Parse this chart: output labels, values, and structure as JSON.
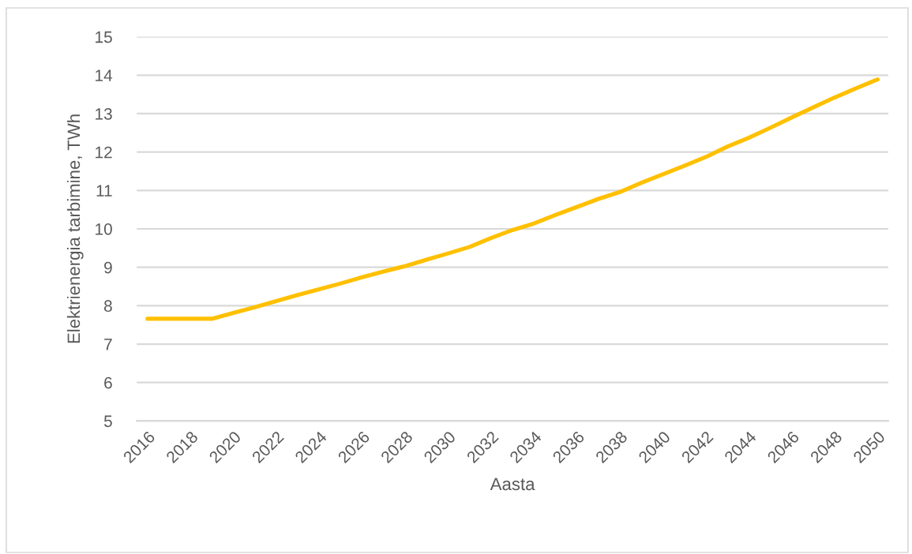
{
  "chart_data": {
    "type": "line",
    "xlabel": "Aasta",
    "ylabel": "Elektrienergia tarbimine, TWh",
    "x": [
      2016,
      2017,
      2018,
      2019,
      2020,
      2021,
      2022,
      2023,
      2024,
      2025,
      2026,
      2027,
      2028,
      2029,
      2030,
      2031,
      2032,
      2033,
      2034,
      2035,
      2036,
      2037,
      2038,
      2039,
      2040,
      2041,
      2042,
      2043,
      2044,
      2045,
      2046,
      2047,
      2048,
      2049,
      2050
    ],
    "series": [
      {
        "color": "#ffc000",
        "values": [
          7.66,
          7.66,
          7.66,
          7.66,
          7.81,
          7.96,
          8.12,
          8.28,
          8.43,
          8.58,
          8.74,
          8.89,
          9.03,
          9.2,
          9.36,
          9.53,
          9.76,
          9.97,
          10.14,
          10.36,
          10.57,
          10.78,
          10.96,
          11.2,
          11.42,
          11.64,
          11.87,
          12.14,
          12.37,
          12.63,
          12.9,
          13.16,
          13.42,
          13.66,
          13.89
        ]
      }
    ],
    "xlim": [
      2015.5,
      2050.5
    ],
    "xticks": [
      2016,
      2018,
      2020,
      2022,
      2024,
      2026,
      2028,
      2030,
      2032,
      2034,
      2036,
      2038,
      2040,
      2042,
      2044,
      2046,
      2048,
      2050
    ],
    "ylim": [
      5,
      15
    ],
    "yticks": [
      5,
      6,
      7,
      8,
      9,
      10,
      11,
      12,
      13,
      14,
      15
    ],
    "grid": "y",
    "marker": "none",
    "line_style": "solid"
  }
}
